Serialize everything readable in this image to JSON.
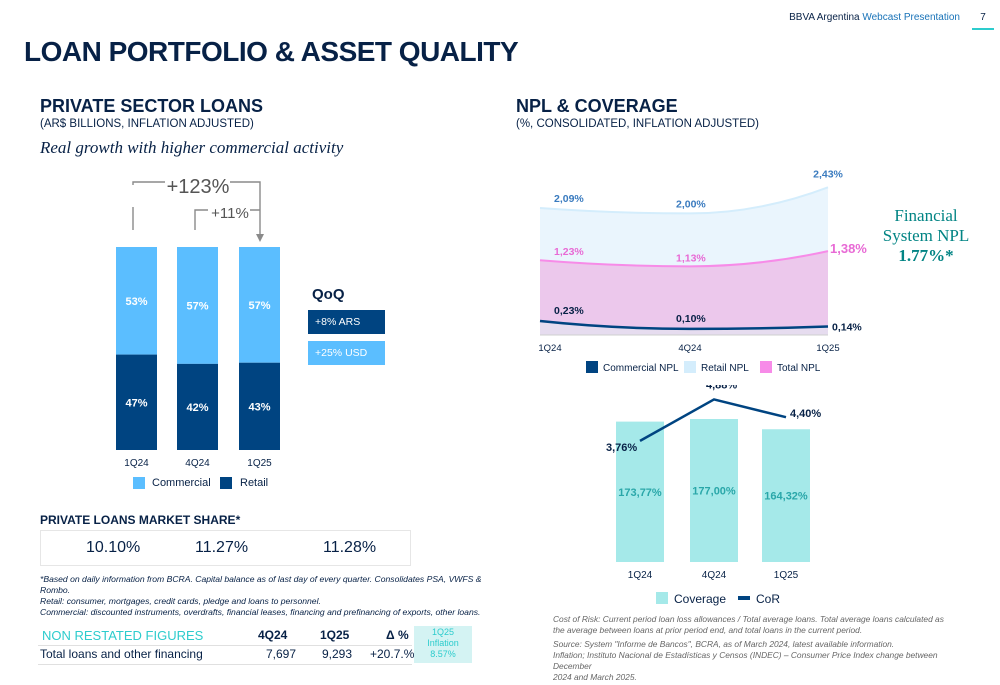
{
  "header": {
    "brand": "BBVA Argentina",
    "presentation": "Webcast Presentation",
    "page": "7"
  },
  "title": "LOAN PORTFOLIO & ASSET QUALITY",
  "loans": {
    "title": "PRIVATE SECTOR LOANS",
    "subtitle": "(AR$ BILLIONS, INFLATION ADJUSTED)",
    "tagline": "Real growth with higher commercial activity",
    "growth_total": "+123%",
    "growth_qoq": "+11%",
    "qoq": {
      "title": "QoQ",
      "ars": "+8% ARS",
      "usd": "+25% USD"
    },
    "legend": [
      "Commercial",
      "Retail"
    ]
  },
  "market_share": {
    "title": "PRIVATE LOANS MARKET SHARE*",
    "values": [
      "10.10%",
      "11.27%",
      "11.28%"
    ]
  },
  "notes": [
    "*Based on daily information from BCRA. Capital balance as of last day of every quarter. Consolidates PSA, VWFS & Rombo.",
    "Retail: consumer, mortgages, credit cards, pledge and loans to personnel.",
    "Commercial: discounted instruments, overdrafts, financial leases, financing and prefinancing of exports, other loans."
  ],
  "non_restated": {
    "title": "NON RESTATED FIGURES",
    "headers": [
      "4Q24",
      "1Q25",
      "Δ %"
    ],
    "row_label": "Total loans and other financing",
    "row_values": [
      "7,697",
      "9,293",
      "+20.7.%"
    ],
    "inflation_lines": [
      "1Q25",
      "Inflation",
      "8.57%"
    ]
  },
  "npl": {
    "title": "NPL & COVERAGE",
    "subtitle": "(%, CONSOLIDATED, INFLATION ADJUSTED)",
    "fs_lines": [
      "Financial",
      "System NPL"
    ],
    "fs_value": "1.77%*"
  },
  "sources": [
    "Cost of Risk: Current period loan loss allowances / Total average loans. Total average loans calculated as",
    "the average between loans at prior period end, and total loans in the current period.",
    "Source: System \"Informe de Bancos\", BCRA, as of  March 2024, latest available information.",
    "Inflation; Instituto Nacional de Estadísticas y Censos (INDEC) – Consumer Price Index change between December",
    "2024 and March 2025."
  ],
  "colors": {
    "navy": "#072146",
    "commercial": "#5bbeff",
    "retail": "#004481",
    "npl_total": "#f78be8",
    "npl_retail": "#d4edfc",
    "coverage": "#a5e9e9",
    "cor": "#004481",
    "teal": "#2dcccd"
  },
  "chart_data": [
    {
      "type": "bar",
      "stacked": true,
      "percent": true,
      "categories": [
        "1Q24",
        "4Q24",
        "1Q25"
      ],
      "series": [
        {
          "name": "Commercial",
          "values": [
            53,
            57,
            57
          ],
          "color": "#5bbeff"
        },
        {
          "name": "Retail",
          "values": [
            47,
            42,
            43
          ],
          "color": "#004481"
        }
      ],
      "labels": [
        [
          "53%",
          "57%",
          "57%"
        ],
        [
          "47%",
          "42%",
          "43%"
        ]
      ],
      "ylim": [
        0,
        100
      ]
    },
    {
      "type": "area",
      "categories": [
        "1Q24",
        "4Q24",
        "1Q25"
      ],
      "series": [
        {
          "name": "Commercial NPL",
          "values": [
            0.23,
            0.1,
            0.14
          ],
          "labels": [
            "0,23%",
            "0,10%",
            "0,14%"
          ],
          "color": "#004481",
          "style": "line"
        },
        {
          "name": "Retail NPL",
          "values": [
            2.09,
            2.0,
            2.43
          ],
          "labels": [
            "2,09%",
            "2,00%",
            "2,43%"
          ],
          "color": "#d4edfc",
          "style": "area"
        },
        {
          "name": "Total NPL",
          "values": [
            1.23,
            1.13,
            1.38
          ],
          "labels": [
            "1,23%",
            "1,13%",
            "1,38%"
          ],
          "color": "#f78be8",
          "style": "area"
        }
      ],
      "ylim": [
        0,
        2.5
      ]
    },
    {
      "type": "bar",
      "categories": [
        "1Q24",
        "4Q24",
        "1Q25"
      ],
      "series": [
        {
          "name": "Coverage",
          "values": [
            173.77,
            177.0,
            164.32
          ],
          "labels": [
            "173,77%",
            "177,00%",
            "164,32%"
          ],
          "color": "#a5e9e9"
        },
        {
          "name": "CoR",
          "values": [
            3.76,
            4.88,
            4.4
          ],
          "labels": [
            "3,76%",
            "4,88%",
            "4,40%"
          ],
          "color": "#004481",
          "style": "line"
        }
      ],
      "ylim_bars": [
        0,
        180
      ],
      "ylim_line": [
        0,
        6
      ]
    }
  ]
}
